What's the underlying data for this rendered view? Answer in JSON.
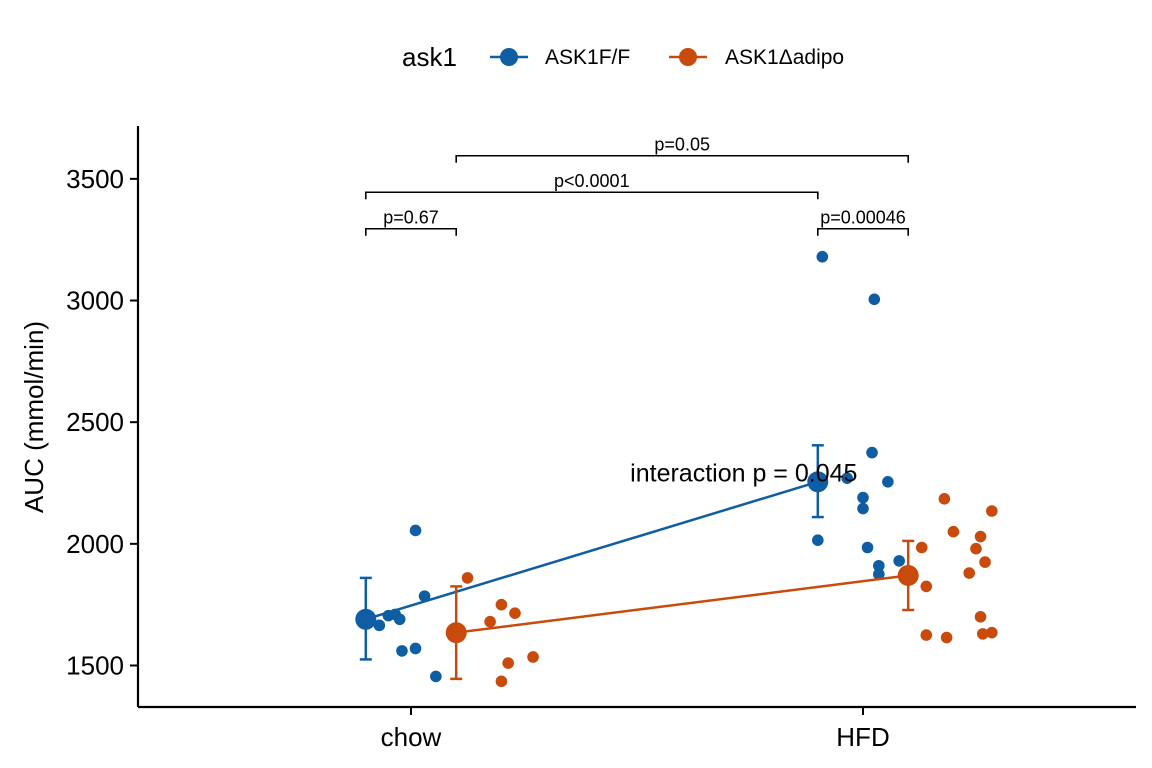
{
  "chart_data": {
    "type": "scatter",
    "title": "",
    "xlabel": "",
    "ylabel": "AUC (mmol/min)",
    "categories": [
      "chow",
      "HFD"
    ],
    "ylim": [
      1320,
      3700
    ],
    "yticks": [
      1500,
      2000,
      2500,
      3000,
      3500
    ],
    "grid": false,
    "legend": {
      "title": "ask1",
      "position": "top"
    },
    "series": [
      {
        "name": "ASK1F/F",
        "color": "#0F5EA4",
        "means": [
          1690,
          2255
        ],
        "err_low": [
          1525,
          2110
        ],
        "err_high": [
          1860,
          2405
        ],
        "points": [
          {
            "category": "chow",
            "offset": -0.07,
            "value": 1665
          },
          {
            "category": "chow",
            "offset": -0.05,
            "value": 1705
          },
          {
            "category": "chow",
            "offset": -0.035,
            "value": 1710
          },
          {
            "category": "chow",
            "offset": -0.025,
            "value": 1690
          },
          {
            "category": "chow",
            "offset": -0.02,
            "value": 1560
          },
          {
            "category": "chow",
            "offset": 0.01,
            "value": 2055
          },
          {
            "category": "chow",
            "offset": 0.01,
            "value": 1570
          },
          {
            "category": "chow",
            "offset": 0.03,
            "value": 1785
          },
          {
            "category": "chow",
            "offset": 0.055,
            "value": 1455
          },
          {
            "category": "HFD",
            "offset": -0.1,
            "value": 2015
          },
          {
            "category": "HFD",
            "offset": -0.09,
            "value": 3180
          },
          {
            "category": "HFD",
            "offset": -0.035,
            "value": 2270
          },
          {
            "category": "HFD",
            "offset": 0.0,
            "value": 2190
          },
          {
            "category": "HFD",
            "offset": 0.0,
            "value": 2145
          },
          {
            "category": "HFD",
            "offset": 0.01,
            "value": 1985
          },
          {
            "category": "HFD",
            "offset": 0.02,
            "value": 2375
          },
          {
            "category": "HFD",
            "offset": 0.025,
            "value": 3005
          },
          {
            "category": "HFD",
            "offset": 0.035,
            "value": 1910
          },
          {
            "category": "HFD",
            "offset": 0.035,
            "value": 1875
          },
          {
            "category": "HFD",
            "offset": 0.055,
            "value": 2255
          },
          {
            "category": "HFD",
            "offset": 0.08,
            "value": 1930
          }
        ]
      },
      {
        "name": "ASK1Δadipo",
        "color": "#C94B0C",
        "means": [
          1635,
          1870
        ],
        "err_low": [
          1445,
          1728
        ],
        "err_high": [
          1825,
          2012
        ],
        "points": [
          {
            "category": "chow",
            "offset": 0.125,
            "value": 1860
          },
          {
            "category": "chow",
            "offset": 0.175,
            "value": 1680
          },
          {
            "category": "chow",
            "offset": 0.2,
            "value": 1750
          },
          {
            "category": "chow",
            "offset": 0.2,
            "value": 1435
          },
          {
            "category": "chow",
            "offset": 0.215,
            "value": 1510
          },
          {
            "category": "chow",
            "offset": 0.23,
            "value": 1715
          },
          {
            "category": "chow",
            "offset": 0.27,
            "value": 1535
          },
          {
            "category": "HFD",
            "offset": 0.13,
            "value": 1985
          },
          {
            "category": "HFD",
            "offset": 0.14,
            "value": 1825
          },
          {
            "category": "HFD",
            "offset": 0.14,
            "value": 1625
          },
          {
            "category": "HFD",
            "offset": 0.18,
            "value": 2185
          },
          {
            "category": "HFD",
            "offset": 0.185,
            "value": 1615
          },
          {
            "category": "HFD",
            "offset": 0.2,
            "value": 2050
          },
          {
            "category": "HFD",
            "offset": 0.235,
            "value": 1880
          },
          {
            "category": "HFD",
            "offset": 0.25,
            "value": 1980
          },
          {
            "category": "HFD",
            "offset": 0.26,
            "value": 2030
          },
          {
            "category": "HFD",
            "offset": 0.26,
            "value": 1700
          },
          {
            "category": "HFD",
            "offset": 0.265,
            "value": 1630
          },
          {
            "category": "HFD",
            "offset": 0.27,
            "value": 1925
          },
          {
            "category": "HFD",
            "offset": 0.285,
            "value": 2135
          },
          {
            "category": "HFD",
            "offset": 0.285,
            "value": 1635
          }
        ]
      }
    ],
    "comparisons": [
      {
        "label": "p=0.67",
        "from": [
          "chow",
          "ASK1F/F"
        ],
        "to": [
          "chow",
          "ASK1Δadipo"
        ],
        "y": 3295
      },
      {
        "label": "p=0.00046",
        "from": [
          "HFD",
          "ASK1F/F"
        ],
        "to": [
          "HFD",
          "ASK1Δadipo"
        ],
        "y": 3295
      },
      {
        "label": "p<0.0001",
        "from": [
          "chow",
          "ASK1F/F"
        ],
        "to": [
          "HFD",
          "ASK1F/F"
        ],
        "y": 3445
      },
      {
        "label": "p=0.05",
        "from": [
          "chow",
          "ASK1Δadipo"
        ],
        "to": [
          "HFD",
          "ASK1Δadipo"
        ],
        "y": 3595
      }
    ],
    "annotation": {
      "text": "interaction p = 0.045",
      "category": "HFD",
      "offset": -0.35,
      "value": 2290
    }
  }
}
